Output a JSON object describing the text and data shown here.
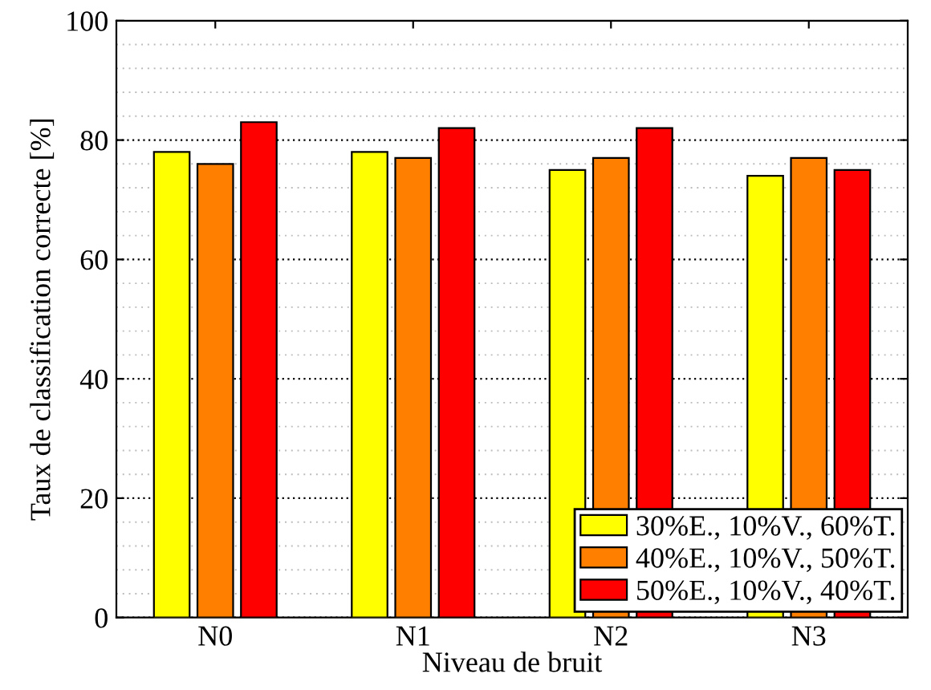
{
  "chart_data": {
    "type": "bar",
    "xlabel": "Niveau de bruit",
    "ylabel": "Taux de classification correcte [%]",
    "categories": [
      "N0",
      "N1",
      "N2",
      "N3"
    ],
    "series": [
      {
        "name": "30%E., 10%V., 60%T.",
        "color": "#ffff00",
        "values": [
          78,
          78,
          75,
          74
        ]
      },
      {
        "name": "40%E., 10%V., 50%T.",
        "color": "#ff8000",
        "values": [
          76,
          77,
          77,
          77
        ]
      },
      {
        "name": "50%E., 10%V., 40%T.",
        "color": "#ff0000",
        "values": [
          83,
          82,
          82,
          75
        ]
      }
    ],
    "ylim": [
      0,
      100
    ],
    "yticks": [
      0,
      20,
      40,
      60,
      80,
      100
    ],
    "grid": "y",
    "legend": "bottom right"
  }
}
